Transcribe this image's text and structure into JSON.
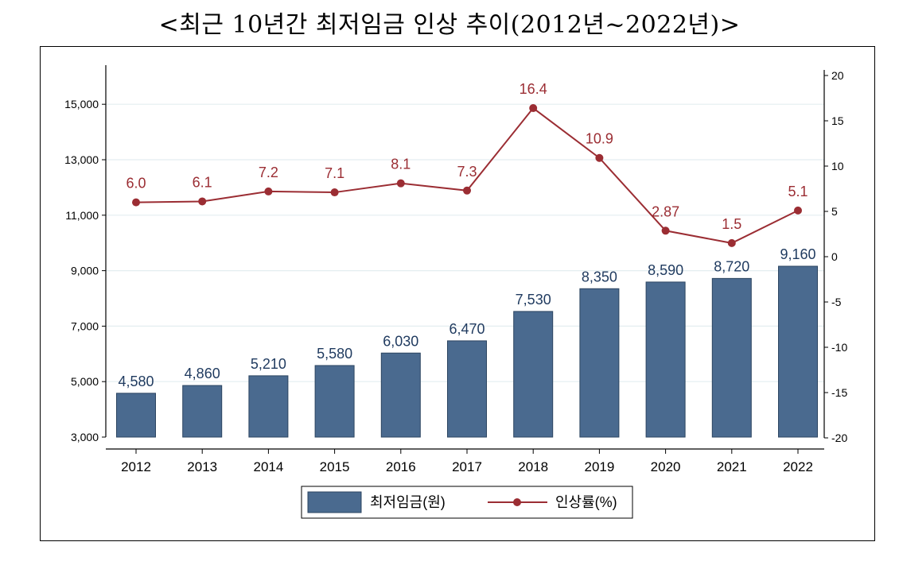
{
  "title": "<최근 10년간 최저임금 인상 추이(2012년~2022년)>",
  "colors": {
    "bar": "#4a6a8f",
    "bar_stroke": "#2c4561",
    "line": "#9b2d33",
    "grid": "#e4eef0",
    "bar_label": "#1f3a5f"
  },
  "chart_data": {
    "type": "bar",
    "title": "<최근 10년간 최저임금 인상 추이(2012년~2022년)>",
    "categories": [
      "2012",
      "2013",
      "2014",
      "2015",
      "2016",
      "2017",
      "2018",
      "2019",
      "2020",
      "2021",
      "2022"
    ],
    "series": [
      {
        "name": "최저임금(원)",
        "type": "bar",
        "axis": "left",
        "values": [
          4580,
          4860,
          5210,
          5580,
          6030,
          6470,
          7530,
          8350,
          8590,
          8720,
          9160
        ],
        "labels": [
          "4,580",
          "4,860",
          "5,210",
          "5,580",
          "6,030",
          "6,470",
          "7,530",
          "8,350",
          "8,590",
          "8,720",
          "9,160"
        ]
      },
      {
        "name": "인상률(%)",
        "type": "line",
        "axis": "right",
        "values": [
          6.0,
          6.1,
          7.2,
          7.1,
          8.1,
          7.3,
          16.4,
          10.9,
          2.87,
          1.5,
          5.1
        ],
        "labels": [
          "6.0",
          "6.1",
          "7.2",
          "7.1",
          "8.1",
          "7.3",
          "16.4",
          "10.9",
          "2.87",
          "1.5",
          "5.1"
        ]
      }
    ],
    "y_left": {
      "ylim": [
        3000,
        16000
      ],
      "ticks": [
        3000,
        5000,
        7000,
        9000,
        11000,
        13000,
        15000
      ],
      "tick_labels": [
        "3,000",
        "5,000",
        "7,000",
        "9,000",
        "11,000",
        "13,000",
        "15,000"
      ]
    },
    "y_right": {
      "ylim": [
        -20,
        21
      ],
      "ticks": [
        -20,
        -15,
        -10,
        -5,
        0,
        5,
        10,
        15,
        20
      ],
      "tick_labels": [
        "-20",
        "-15",
        "-10",
        "-5",
        "0",
        "5",
        "10",
        "15",
        "20"
      ]
    },
    "grid": "horizontal",
    "legend": "bottom"
  }
}
